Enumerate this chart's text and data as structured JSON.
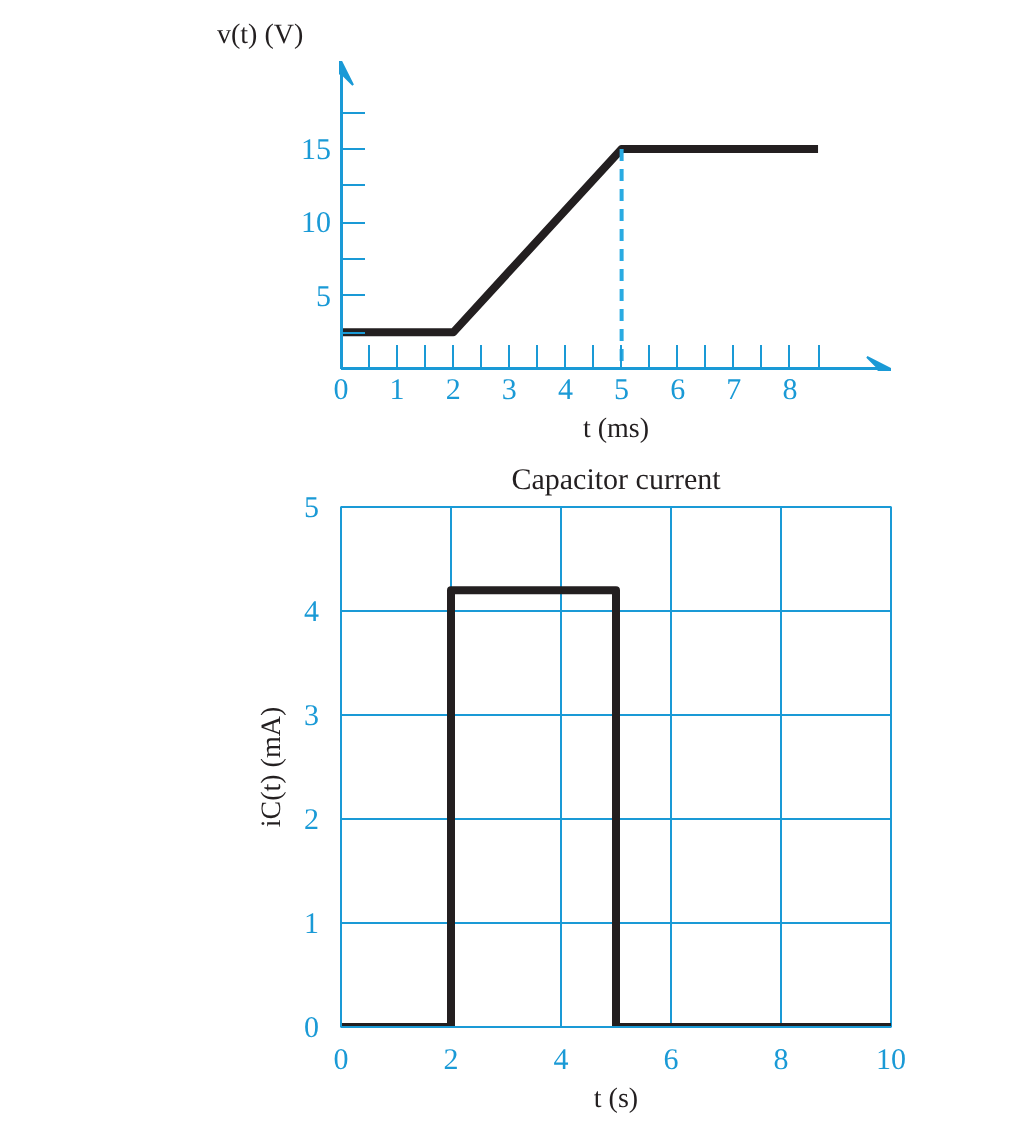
{
  "chart_data": [
    {
      "type": "line",
      "xlabel": "t (ms)",
      "ylabel": "v(t) (V)",
      "xlim": [
        0,
        9.8
      ],
      "ylim": [
        0,
        21
      ],
      "xticks": [
        0,
        {
          "value": 0.5,
          "label": null
        },
        1,
        {
          "value": 1.5,
          "label": null
        },
        2,
        {
          "value": 2.5,
          "label": null
        },
        3,
        {
          "value": 3.5,
          "label": null
        },
        4,
        {
          "value": 4.5,
          "label": null
        },
        5,
        {
          "value": 5.5,
          "label": null
        },
        6,
        {
          "value": 6.5,
          "label": null
        },
        7,
        {
          "value": 7.5,
          "label": null
        },
        8,
        {
          "value": 8.5,
          "label": null
        }
      ],
      "yticks": [
        {
          "value": 2.5,
          "label": null
        },
        5,
        {
          "value": 7.5,
          "label": null
        },
        10,
        {
          "value": 12.5,
          "label": null
        },
        15,
        {
          "value": 17.5,
          "label": null
        }
      ],
      "grid": false,
      "marker": "none",
      "series": [
        {
          "color": "#231f20",
          "x": [
            0,
            2,
            5,
            8.5
          ],
          "values": [
            2.5,
            2.5,
            15,
            15
          ],
          "line_style": "solid"
        },
        {
          "color": "#29abe2",
          "x": [
            5,
            5
          ],
          "values": [
            15,
            0
          ],
          "line_style": "dashed"
        }
      ]
    },
    {
      "type": "line",
      "title": "Capacitor current",
      "xlabel": "t (s)",
      "ylabel": "iC(t) (mA)",
      "xlim": [
        0,
        10
      ],
      "ylim": [
        0,
        5
      ],
      "xticks": [
        0,
        2,
        4,
        6,
        8,
        10
      ],
      "yticks": [
        0,
        1,
        2,
        3,
        4,
        5
      ],
      "grid": true,
      "marker": "none",
      "series": [
        {
          "color": "#231f20",
          "x": [
            0,
            2,
            2,
            5,
            5,
            10
          ],
          "values": [
            0,
            0,
            4.2,
            4.2,
            0,
            0
          ],
          "line_style": "solid"
        }
      ]
    }
  ]
}
